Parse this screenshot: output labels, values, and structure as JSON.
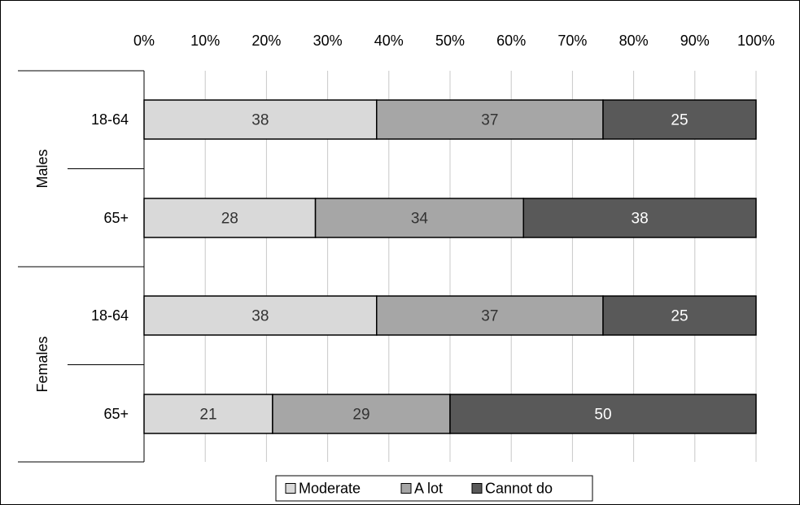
{
  "chart_data": {
    "type": "bar",
    "orientation": "horizontal",
    "stacked": true,
    "percent_stacked": true,
    "xlim": [
      0,
      100
    ],
    "x_ticks": [
      "0%",
      "10%",
      "20%",
      "30%",
      "40%",
      "50%",
      "60%",
      "70%",
      "80%",
      "90%",
      "100%"
    ],
    "x_tick_position": "top",
    "grid": true,
    "groups": [
      {
        "label": "Males",
        "categories": [
          "18-64",
          "65+"
        ]
      },
      {
        "label": "Females",
        "categories": [
          "18-64",
          "65+"
        ]
      }
    ],
    "series": [
      {
        "name": "Moderate",
        "color": "#d9d9d9",
        "text_color": "#333333",
        "values": [
          38,
          28,
          38,
          21
        ]
      },
      {
        "name": "A lot",
        "color": "#a6a6a6",
        "text_color": "#333333",
        "values": [
          37,
          34,
          37,
          29
        ]
      },
      {
        "name": "Cannot do",
        "color": "#595959",
        "text_color": "#ffffff",
        "values": [
          25,
          38,
          25,
          50
        ]
      }
    ],
    "legend_position": "bottom"
  }
}
